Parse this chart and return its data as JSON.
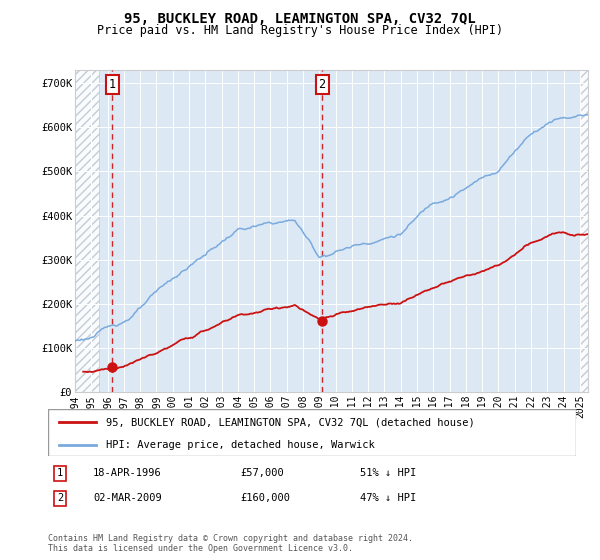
{
  "title": "95, BUCKLEY ROAD, LEAMINGTON SPA, CV32 7QL",
  "subtitle": "Price paid vs. HM Land Registry's House Price Index (HPI)",
  "ylabel_ticks": [
    "£0",
    "£100K",
    "£200K",
    "£300K",
    "£400K",
    "£500K",
    "£600K",
    "£700K"
  ],
  "ytick_vals": [
    0,
    100000,
    200000,
    300000,
    400000,
    500000,
    600000,
    700000
  ],
  "ylim": [
    0,
    730000
  ],
  "xlim_start": 1994.0,
  "xlim_end": 2025.5,
  "hpi_color": "#7aaadd",
  "property_color": "#cc1111",
  "sale1_year": 1996.3,
  "sale1_price": 57000,
  "sale2_year": 2009.17,
  "sale2_price": 160000,
  "hatch_left_end": 1995.5,
  "hatch_right_start": 2025.0,
  "legend_property": "95, BUCKLEY ROAD, LEAMINGTON SPA, CV32 7QL (detached house)",
  "legend_hpi": "HPI: Average price, detached house, Warwick",
  "note1_date": "18-APR-1996",
  "note1_price": "£57,000",
  "note1_pct": "51% ↓ HPI",
  "note2_date": "02-MAR-2009",
  "note2_price": "£160,000",
  "note2_pct": "47% ↓ HPI",
  "footer": "Contains HM Land Registry data © Crown copyright and database right 2024.\nThis data is licensed under the Open Government Licence v3.0.",
  "bg_color": "#dce9f5",
  "hatch_color": "#b8c4d0",
  "grid_color": "#ffffff",
  "spine_color": "#cccccc"
}
